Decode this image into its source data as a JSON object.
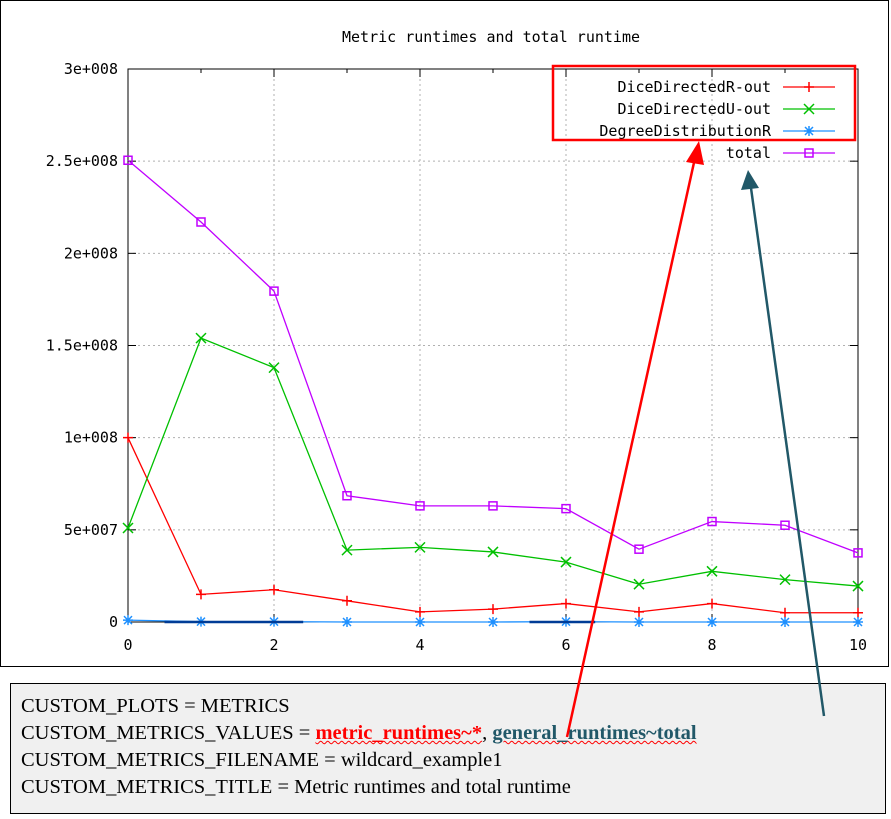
{
  "chart_data": {
    "type": "line",
    "title": "Metric runtimes and total runtime",
    "xlabel": "",
    "ylabel": "",
    "xlim": [
      0,
      10
    ],
    "ylim": [
      0,
      300000000
    ],
    "grid": true,
    "legend_position": "top-right",
    "x_ticks": [
      {
        "value": 0,
        "label": "0"
      },
      {
        "value": 2,
        "label": "2"
      },
      {
        "value": 4,
        "label": "4"
      },
      {
        "value": 6,
        "label": "6"
      },
      {
        "value": 8,
        "label": "8"
      },
      {
        "value": 10,
        "label": "10"
      }
    ],
    "y_ticks": [
      {
        "value": 0,
        "label": "0"
      },
      {
        "value": 50000000,
        "label": "5e+007"
      },
      {
        "value": 100000000,
        "label": "1e+008"
      },
      {
        "value": 150000000,
        "label": "1.5e+008"
      },
      {
        "value": 200000000,
        "label": "2e+008"
      },
      {
        "value": 250000000,
        "label": "2.5e+008"
      },
      {
        "value": 300000000,
        "label": "3e+008"
      }
    ],
    "x": [
      0,
      1,
      2,
      3,
      4,
      5,
      6,
      7,
      8,
      9,
      10
    ],
    "series": [
      {
        "name": "DiceDirectedR-out",
        "color": "#ff0000",
        "marker": "plus",
        "values": [
          100000000,
          15000000,
          17500000,
          11500000,
          5500000,
          7000000,
          10000000,
          5500000,
          10000000,
          5000000,
          5000000
        ]
      },
      {
        "name": "DiceDirectedU-out",
        "color": "#00c000",
        "marker": "cross",
        "values": [
          51000000,
          154000000,
          138000000,
          39000000,
          40500000,
          38000000,
          32500000,
          20500000,
          27500000,
          23000000,
          19500000
        ]
      },
      {
        "name": "DegreeDistributionR",
        "color": "#1e90ff",
        "marker": "star",
        "values": [
          1000000,
          200000,
          200000,
          0,
          0,
          0,
          200000,
          0,
          0,
          0,
          0
        ]
      },
      {
        "name": "total",
        "color": "#c000ff",
        "marker": "square",
        "values": [
          250500000,
          217000000,
          179500000,
          68500000,
          63000000,
          63000000,
          61500000,
          39500000,
          54500000,
          52500000,
          37500000
        ]
      }
    ]
  },
  "config": {
    "line1": "CUSTOM_PLOTS = METRICS",
    "line2_prefix": "CUSTOM_METRICS_VALUES = ",
    "line2_red": "metric_runtimes~*",
    "line2_sep": ", ",
    "line2_teal": "general_runtimes~total",
    "line3": "CUSTOM_METRICS_FILENAME = wildcard_example1",
    "line4": "CUSTOM_METRICS_TITLE = Metric runtimes and total runtime"
  },
  "annotations": {
    "legend_highlight_color": "#ff0000",
    "red_arrow_color": "#ff0000",
    "teal_arrow_color": "#215868"
  }
}
